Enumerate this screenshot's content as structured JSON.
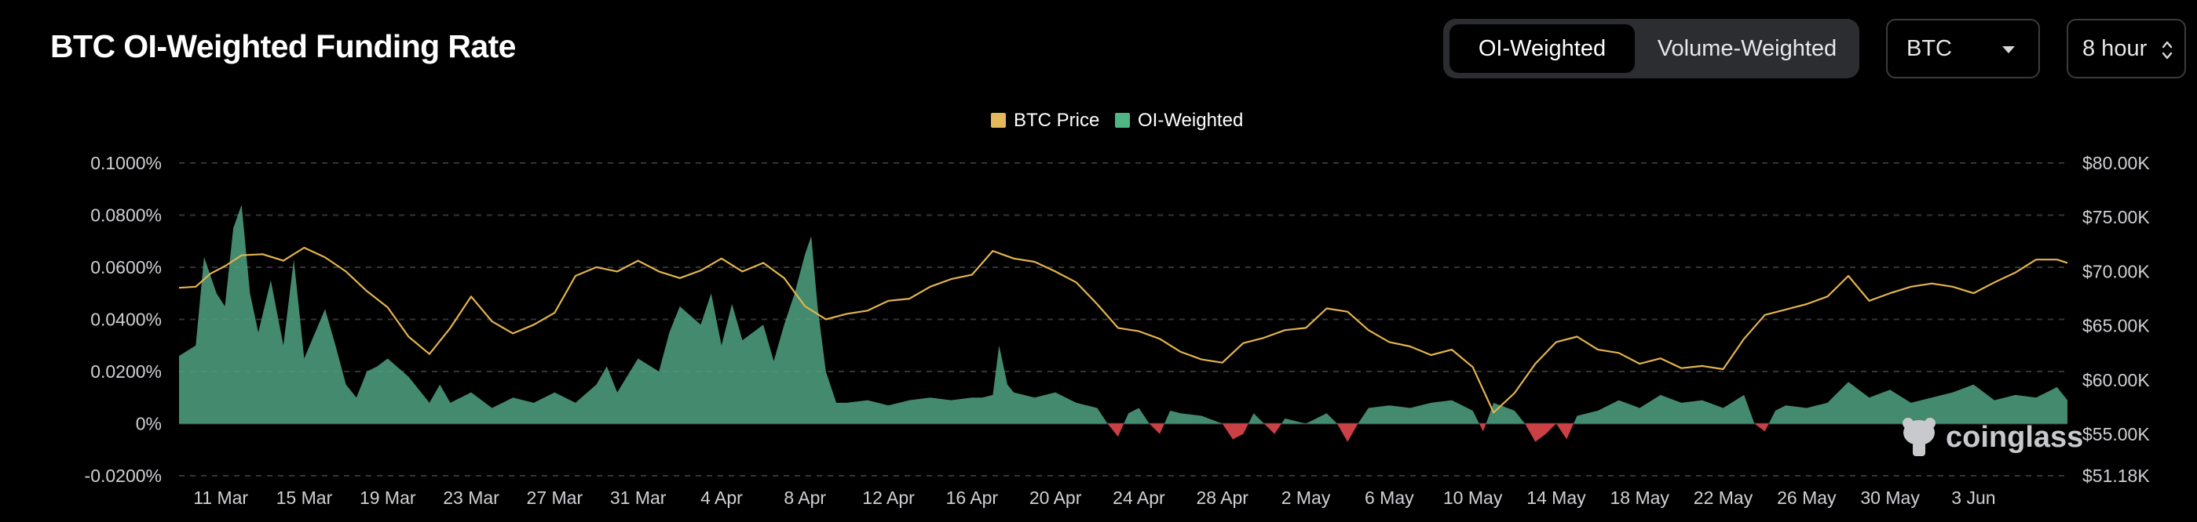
{
  "header": {
    "title": "BTC OI-Weighted Funding Rate",
    "tabs": [
      {
        "label": "OI-Weighted",
        "active": true
      },
      {
        "label": "Volume-Weighted",
        "active": false
      }
    ],
    "coin_select": "BTC",
    "period_select": "8 hour"
  },
  "watermark": "coinglass",
  "colors": {
    "price_line": "#e3b44d",
    "funding_positive": "#4fa283",
    "funding_negative": "#e0474d",
    "grid": "#33353a",
    "background": "#000000"
  },
  "chart_data": {
    "type": "area",
    "title": "",
    "legend": [
      {
        "name": "BTC Price",
        "color": "#e6b85c"
      },
      {
        "name": "OI-Weighted",
        "color": "#4fb585"
      }
    ],
    "x_ticks": [
      "11 Mar",
      "15 Mar",
      "19 Mar",
      "23 Mar",
      "27 Mar",
      "31 Mar",
      "4 Apr",
      "8 Apr",
      "12 Apr",
      "16 Apr",
      "20 Apr",
      "24 Apr",
      "28 Apr",
      "2 May",
      "6 May",
      "10 May",
      "14 May",
      "18 May",
      "22 May",
      "26 May",
      "30 May",
      "3 Jun"
    ],
    "y_left_ticks": [
      "0.1000%",
      "0.0800%",
      "0.0600%",
      "0.0400%",
      "0.0200%",
      "0%",
      "-0.0200%"
    ],
    "y_left_range": [
      -0.02,
      0.1
    ],
    "y_right_ticks": [
      "$80.00K",
      "$75.00K",
      "$70.00K",
      "$65.00K",
      "$60.00K",
      "$55.00K",
      "$51.18K"
    ],
    "y_right_range": [
      51.18,
      80
    ],
    "x_range_days": [
      0,
      90.5
    ],
    "series": [
      {
        "name": "BTC Price",
        "unit": "$K",
        "points": [
          [
            0,
            68.5
          ],
          [
            0.8,
            68.6
          ],
          [
            1.5,
            69.8
          ],
          [
            2.2,
            70.5
          ],
          [
            3,
            71.5
          ],
          [
            4,
            71.6
          ],
          [
            5,
            71.0
          ],
          [
            6,
            72.2
          ],
          [
            7,
            71.3
          ],
          [
            8,
            70.0
          ],
          [
            9,
            68.2
          ],
          [
            10,
            66.7
          ],
          [
            11,
            64.0
          ],
          [
            12,
            62.4
          ],
          [
            13,
            64.8
          ],
          [
            14,
            67.7
          ],
          [
            15,
            65.4
          ],
          [
            16,
            64.3
          ],
          [
            17,
            65.1
          ],
          [
            18,
            66.2
          ],
          [
            19,
            69.6
          ],
          [
            20,
            70.4
          ],
          [
            21,
            70.0
          ],
          [
            22,
            71.0
          ],
          [
            23,
            70.0
          ],
          [
            24,
            69.4
          ],
          [
            25,
            70.1
          ],
          [
            26,
            71.2
          ],
          [
            27,
            70.0
          ],
          [
            28,
            70.8
          ],
          [
            29,
            69.4
          ],
          [
            30,
            66.8
          ],
          [
            31,
            65.6
          ],
          [
            32,
            66.1
          ],
          [
            33,
            66.4
          ],
          [
            34,
            67.3
          ],
          [
            35,
            67.5
          ],
          [
            36,
            68.6
          ],
          [
            37,
            69.3
          ],
          [
            38,
            69.7
          ],
          [
            39,
            71.9
          ],
          [
            40,
            71.2
          ],
          [
            41,
            70.9
          ],
          [
            42,
            70.0
          ],
          [
            43,
            69.0
          ],
          [
            44,
            67.0
          ],
          [
            45,
            64.8
          ],
          [
            46,
            64.5
          ],
          [
            47,
            63.8
          ],
          [
            48,
            62.6
          ],
          [
            49,
            61.9
          ],
          [
            50,
            61.6
          ],
          [
            51,
            63.4
          ],
          [
            52,
            63.9
          ],
          [
            53,
            64.6
          ],
          [
            54,
            64.8
          ],
          [
            55,
            66.6
          ],
          [
            56,
            66.3
          ],
          [
            57,
            64.6
          ],
          [
            58,
            63.5
          ],
          [
            59,
            63.1
          ],
          [
            60,
            62.3
          ],
          [
            61,
            62.8
          ],
          [
            62,
            61.2
          ],
          [
            63,
            57.0
          ],
          [
            64,
            58.8
          ],
          [
            65,
            61.5
          ],
          [
            66,
            63.5
          ],
          [
            67,
            64.0
          ],
          [
            68,
            62.8
          ],
          [
            69,
            62.5
          ],
          [
            70,
            61.5
          ],
          [
            71,
            62.0
          ],
          [
            72,
            61.1
          ],
          [
            73,
            61.3
          ],
          [
            74,
            61.0
          ],
          [
            75,
            63.8
          ],
          [
            76,
            66.0
          ],
          [
            77,
            66.5
          ],
          [
            78,
            67.0
          ],
          [
            79,
            67.7
          ],
          [
            80,
            69.6
          ],
          [
            81,
            67.3
          ],
          [
            82,
            68.0
          ],
          [
            83,
            68.6
          ],
          [
            84,
            68.9
          ],
          [
            85,
            68.6
          ],
          [
            86,
            68.0
          ],
          [
            87,
            69.0
          ],
          [
            88,
            69.9
          ],
          [
            89,
            71.1
          ],
          [
            90,
            71.1
          ],
          [
            90.5,
            70.8
          ]
        ]
      },
      {
        "name": "OI-Weighted",
        "unit": "%",
        "points": [
          [
            0,
            0.026
          ],
          [
            0.8,
            0.03
          ],
          [
            1.2,
            0.064
          ],
          [
            1.8,
            0.05
          ],
          [
            2.2,
            0.045
          ],
          [
            2.6,
            0.075
          ],
          [
            3,
            0.084
          ],
          [
            3.4,
            0.05
          ],
          [
            3.8,
            0.035
          ],
          [
            4.4,
            0.055
          ],
          [
            5,
            0.03
          ],
          [
            5.5,
            0.063
          ],
          [
            6,
            0.025
          ],
          [
            7,
            0.044
          ],
          [
            7.5,
            0.03
          ],
          [
            8,
            0.015
          ],
          [
            8.5,
            0.01
          ],
          [
            9,
            0.02
          ],
          [
            9.5,
            0.022
          ],
          [
            10,
            0.025
          ],
          [
            11,
            0.018
          ],
          [
            12,
            0.008
          ],
          [
            12.5,
            0.015
          ],
          [
            13,
            0.008
          ],
          [
            14,
            0.012
          ],
          [
            15,
            0.006
          ],
          [
            16,
            0.01
          ],
          [
            17,
            0.008
          ],
          [
            18,
            0.012
          ],
          [
            19,
            0.008
          ],
          [
            20,
            0.015
          ],
          [
            20.5,
            0.022
          ],
          [
            21,
            0.012
          ],
          [
            22,
            0.025
          ],
          [
            23,
            0.02
          ],
          [
            23.5,
            0.035
          ],
          [
            24,
            0.045
          ],
          [
            25,
            0.038
          ],
          [
            25.5,
            0.05
          ],
          [
            26,
            0.03
          ],
          [
            26.5,
            0.046
          ],
          [
            27,
            0.032
          ],
          [
            28,
            0.038
          ],
          [
            28.5,
            0.024
          ],
          [
            29,
            0.038
          ],
          [
            29.5,
            0.05
          ],
          [
            30,
            0.065
          ],
          [
            30.3,
            0.072
          ],
          [
            30.6,
            0.045
          ],
          [
            31,
            0.02
          ],
          [
            31.5,
            0.008
          ],
          [
            32,
            0.008
          ],
          [
            33,
            0.009
          ],
          [
            34,
            0.007
          ],
          [
            35,
            0.009
          ],
          [
            36,
            0.01
          ],
          [
            37,
            0.009
          ],
          [
            38,
            0.01
          ],
          [
            38.5,
            0.01
          ],
          [
            39,
            0.011
          ],
          [
            39.3,
            0.03
          ],
          [
            39.7,
            0.015
          ],
          [
            40,
            0.012
          ],
          [
            41,
            0.01
          ],
          [
            42,
            0.012
          ],
          [
            43,
            0.008
          ],
          [
            44,
            0.006
          ],
          [
            44.5,
            0.0
          ],
          [
            45,
            -0.005
          ],
          [
            45.5,
            0.004
          ],
          [
            46,
            0.006
          ],
          [
            46.5,
            0.0
          ],
          [
            47,
            -0.004
          ],
          [
            47.5,
            0.005
          ],
          [
            48,
            0.004
          ],
          [
            49,
            0.003
          ],
          [
            50,
            0.0
          ],
          [
            50.5,
            -0.006
          ],
          [
            51,
            -0.004
          ],
          [
            51.5,
            0.004
          ],
          [
            52,
            0.0
          ],
          [
            52.5,
            -0.004
          ],
          [
            53,
            0.002
          ],
          [
            54,
            0.0
          ],
          [
            55,
            0.004
          ],
          [
            55.5,
            0.0
          ],
          [
            56,
            -0.007
          ],
          [
            56.5,
            0.0
          ],
          [
            57,
            0.006
          ],
          [
            58,
            0.007
          ],
          [
            59,
            0.006
          ],
          [
            60,
            0.008
          ],
          [
            61,
            0.009
          ],
          [
            62,
            0.005
          ],
          [
            62.5,
            -0.003
          ],
          [
            63,
            0.008
          ],
          [
            64,
            0.005
          ],
          [
            64.5,
            0.0
          ],
          [
            65,
            -0.007
          ],
          [
            65.5,
            -0.004
          ],
          [
            66,
            0.0
          ],
          [
            66.5,
            -0.006
          ],
          [
            67,
            0.003
          ],
          [
            68,
            0.005
          ],
          [
            69,
            0.009
          ],
          [
            70,
            0.006
          ],
          [
            71,
            0.011
          ],
          [
            72,
            0.008
          ],
          [
            73,
            0.009
          ],
          [
            74,
            0.006
          ],
          [
            75,
            0.011
          ],
          [
            75.5,
            0.0
          ],
          [
            76,
            -0.003
          ],
          [
            76.5,
            0.005
          ],
          [
            77,
            0.007
          ],
          [
            78,
            0.006
          ],
          [
            79,
            0.008
          ],
          [
            80,
            0.016
          ],
          [
            81,
            0.01
          ],
          [
            82,
            0.013
          ],
          [
            83,
            0.008
          ],
          [
            84,
            0.01
          ],
          [
            85,
            0.012
          ],
          [
            86,
            0.015
          ],
          [
            87,
            0.009
          ],
          [
            88,
            0.011
          ],
          [
            89,
            0.01
          ],
          [
            90,
            0.014
          ],
          [
            90.5,
            0.009
          ]
        ]
      }
    ]
  }
}
